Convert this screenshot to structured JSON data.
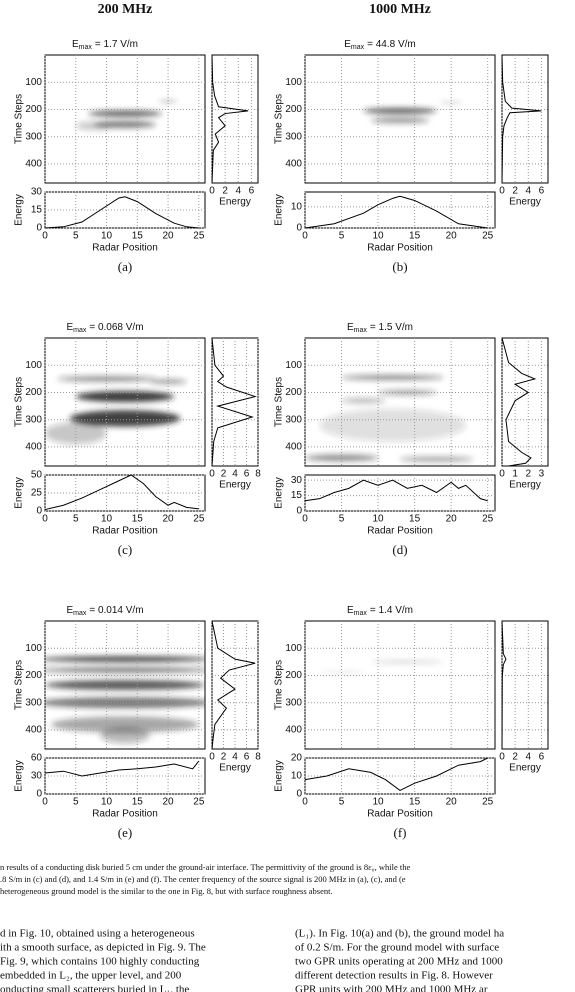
{
  "headers": [
    "200 MHz",
    "1000 MHz"
  ],
  "panels": [
    {
      "label": "(a)",
      "e": "E",
      "sub": "max",
      "emax": "= 1.7 V/m",
      "ylabel": "Time Steps",
      "bottom_ylabel": "Energy",
      "xlabel": "Radar Position",
      "side_xlabel": "Energy",
      "tlim": [
        0,
        470
      ],
      "tticks": [
        100,
        200,
        300,
        400
      ],
      "side_xlim": [
        0,
        7
      ],
      "side_xticks": [
        0,
        2,
        4,
        6
      ],
      "xlim": [
        0,
        26
      ],
      "xticks": [
        0,
        5,
        10,
        15,
        20,
        25
      ],
      "ylim": [
        0,
        30
      ],
      "yticks": [
        0,
        15,
        30
      ],
      "x": [
        0,
        3,
        6,
        9,
        12,
        13,
        15,
        18,
        21,
        23,
        25
      ],
      "energy": [
        0,
        1,
        5,
        15,
        25,
        26,
        22,
        12,
        4,
        1,
        0
      ],
      "side_t": [
        0,
        100,
        150,
        190,
        205,
        215,
        230,
        260,
        290,
        320,
        350,
        470
      ],
      "side_e": [
        0,
        0.1,
        0.4,
        1,
        5.5,
        2,
        1,
        2,
        0.5,
        1,
        0.2,
        0
      ]
    },
    {
      "label": "(b)",
      "e": "E",
      "sub": "max",
      "emax": "= 44.8 V/m",
      "ylabel": "Time Steps",
      "bottom_ylabel": "Energy",
      "xlabel": "Radar Position",
      "side_xlabel": "Energy",
      "tlim": [
        0,
        470
      ],
      "tticks": [
        100,
        200,
        300,
        400
      ],
      "side_xlim": [
        0,
        7
      ],
      "side_xticks": [
        0,
        2,
        4,
        6
      ],
      "xlim": [
        0,
        26
      ],
      "xticks": [
        0,
        5,
        10,
        15,
        20,
        25
      ],
      "ylim": [
        0,
        17
      ],
      "yticks": [
        0,
        10
      ],
      "x": [
        0,
        4,
        8,
        10,
        12,
        13,
        15,
        18,
        21,
        25
      ],
      "energy": [
        0,
        2,
        7,
        11,
        14,
        15,
        13,
        8,
        2,
        0
      ],
      "side_t": [
        0,
        100,
        170,
        195,
        205,
        212,
        230,
        260,
        300,
        470
      ],
      "side_e": [
        0,
        0.1,
        0.5,
        1.5,
        6,
        1.2,
        0.8,
        0.3,
        0.1,
        0
      ]
    },
    {
      "label": "(c)",
      "e": "E",
      "sub": "max",
      "emax": "= 0.068 V/m",
      "ylabel": "Time Steps",
      "bottom_ylabel": "Energy",
      "xlabel": "Radar Position",
      "side_xlabel": "Energy",
      "tlim": [
        0,
        470
      ],
      "tticks": [
        100,
        200,
        300,
        400
      ],
      "side_xlim": [
        0,
        8
      ],
      "side_xticks": [
        0,
        2,
        4,
        6,
        8
      ],
      "xlim": [
        0,
        26
      ],
      "xticks": [
        0,
        5,
        10,
        15,
        20,
        25
      ],
      "ylim": [
        0,
        50
      ],
      "yticks": [
        0,
        25,
        50
      ],
      "x": [
        0,
        3,
        6,
        9,
        12,
        14,
        16,
        18,
        20,
        21,
        23,
        25
      ],
      "energy": [
        2,
        8,
        18,
        30,
        42,
        50,
        38,
        20,
        8,
        12,
        5,
        3
      ],
      "side_t": [
        0,
        100,
        140,
        160,
        180,
        215,
        250,
        290,
        330,
        380,
        470
      ],
      "side_e": [
        0,
        0.5,
        2,
        1,
        2.5,
        7.5,
        1,
        7,
        1,
        0.3,
        0
      ]
    },
    {
      "label": "(d)",
      "e": "E",
      "sub": "max",
      "emax": "= 1.5 V/m",
      "ylabel": "Time Steps",
      "bottom_ylabel": "Energy",
      "xlabel": "Radar Position",
      "side_xlabel": "Energy",
      "tlim": [
        0,
        470
      ],
      "tticks": [
        100,
        200,
        300,
        400
      ],
      "side_xlim": [
        0,
        3.5
      ],
      "side_xticks": [
        0,
        1,
        2,
        3
      ],
      "xlim": [
        0,
        26
      ],
      "xticks": [
        0,
        5,
        10,
        15,
        20,
        25
      ],
      "ylim": [
        0,
        35
      ],
      "yticks": [
        0,
        15,
        30
      ],
      "x": [
        0,
        2,
        4,
        6,
        8,
        10,
        12,
        14,
        16,
        18,
        20,
        21,
        22,
        24,
        25
      ],
      "energy": [
        10,
        12,
        18,
        22,
        30,
        25,
        30,
        22,
        25,
        18,
        28,
        22,
        25,
        12,
        10
      ],
      "side_t": [
        0,
        90,
        130,
        150,
        170,
        200,
        230,
        300,
        380,
        420,
        440,
        460,
        470
      ],
      "side_e": [
        0,
        0.5,
        1.5,
        2.5,
        1,
        2,
        1,
        0.3,
        0.5,
        1.5,
        2.2,
        1.8,
        0.5
      ]
    },
    {
      "label": "(e)",
      "e": "E",
      "sub": "max",
      "emax": "= 0.014 V/m",
      "ylabel": "Time Steps",
      "bottom_ylabel": "Energy",
      "xlabel": "Radar Position",
      "side_xlabel": "Energy",
      "tlim": [
        0,
        470
      ],
      "tticks": [
        100,
        200,
        300,
        400
      ],
      "side_xlim": [
        0,
        8
      ],
      "side_xticks": [
        0,
        2,
        4,
        6,
        8
      ],
      "xlim": [
        0,
        26
      ],
      "xticks": [
        0,
        5,
        10,
        15,
        20,
        25
      ],
      "ylim": [
        0,
        60
      ],
      "yticks": [
        0,
        30,
        60
      ],
      "x": [
        0,
        3,
        6,
        9,
        12,
        15,
        18,
        21,
        24,
        25
      ],
      "energy": [
        35,
        38,
        30,
        35,
        40,
        42,
        45,
        50,
        42,
        55
      ],
      "side_t": [
        0,
        100,
        140,
        155,
        180,
        210,
        250,
        290,
        320,
        380,
        430,
        470
      ],
      "side_e": [
        0,
        1,
        4,
        7.5,
        3,
        1.5,
        4,
        1,
        2.5,
        0.5,
        0.2,
        0
      ]
    },
    {
      "label": "(f)",
      "e": "E",
      "sub": "max",
      "emax": "= 1.4 V/m",
      "ylabel": "Time Steps",
      "bottom_ylabel": "Energy",
      "xlabel": "Radar Position",
      "side_xlabel": "Energy",
      "tlim": [
        0,
        470
      ],
      "tticks": [
        100,
        200,
        300,
        400
      ],
      "side_xlim": [
        0,
        7
      ],
      "side_xticks": [
        0,
        2,
        4,
        6
      ],
      "xlim": [
        0,
        26
      ],
      "xticks": [
        0,
        5,
        10,
        15,
        20,
        25
      ],
      "ylim": [
        0,
        20
      ],
      "yticks": [
        0,
        10,
        20
      ],
      "x": [
        0,
        3,
        6,
        9,
        11,
        13,
        15,
        18,
        21,
        24,
        25
      ],
      "energy": [
        8,
        10,
        14,
        12,
        8,
        2,
        6,
        10,
        16,
        18,
        20
      ],
      "side_t": [
        0,
        120,
        140,
        160,
        200,
        470
      ],
      "side_e": [
        0,
        0.2,
        0.6,
        0.2,
        0.05,
        0
      ]
    }
  ],
  "caption": [
    "n results of a conducting disk buried 5 cm under the ground-air interface. The permittivity of the ground is 8ε₀, while the",
    ".8 S/m in (c) and (d), and 1.4 S/m in (e) and (f). The center frequency of the source signal is 200 MHz in (a), (c), and (e",
    " heterogeneous ground model is the similar to the one in Fig. 8, but with surface roughness absent."
  ],
  "body_left": [
    "d in Fig. 10, obtained using a heterogeneous",
    "ith a smooth surface, as depicted in Fig. 9. The",
    "Fig. 9, which contains 100 highly conducting",
    "embedded in L₂, the upper level, and 200",
    "onducting small scatterers buried in L₁, the"
  ],
  "body_right": [
    "(L₁). In Fig. 10(a) and (b), the ground model ha",
    "of 0.2 S/m. For the ground model with surface",
    "two GPR units operating at 200 MHz and 1000",
    "different detection results in Fig. 8. However",
    "GPR units with 200 MHz and 1000 MHz ar"
  ]
}
